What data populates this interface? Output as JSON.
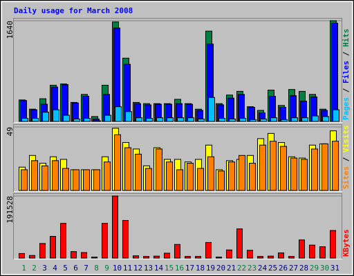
{
  "chart_data": [
    {
      "type": "bar",
      "title": "Daily usage for March 2008",
      "legend_separator": " / ",
      "ylim": [
        0,
        1640
      ],
      "yticks": [
        1640
      ],
      "series": [
        {
          "name": "Pages",
          "color": "#00c0ff",
          "values": [
            50,
            50,
            150,
            190,
            100,
            40,
            50,
            10,
            100,
            240,
            160,
            60,
            50,
            60,
            60,
            60,
            60,
            40,
            390,
            50,
            40,
            50,
            30,
            40,
            60,
            30,
            60,
            60,
            90,
            80,
            190
          ]
        },
        {
          "name": "Files",
          "color": "#0000ff",
          "values": [
            340,
            190,
            280,
            560,
            600,
            300,
            410,
            40,
            440,
            1520,
            930,
            290,
            270,
            280,
            280,
            290,
            280,
            180,
            1260,
            270,
            380,
            440,
            230,
            140,
            410,
            230,
            420,
            330,
            400,
            180,
            1600
          ]
        },
        {
          "name": "Hits",
          "color": "#008040",
          "values": [
            350,
            200,
            370,
            590,
            610,
            310,
            440,
            80,
            590,
            1620,
            1030,
            310,
            290,
            290,
            290,
            360,
            290,
            200,
            1470,
            290,
            430,
            490,
            240,
            180,
            510,
            260,
            520,
            490,
            440,
            200,
            1640
          ]
        }
      ]
    },
    {
      "type": "bar",
      "legend_separator": " / ",
      "ylim": [
        0,
        49
      ],
      "yticks": [
        49
      ],
      "series": [
        {
          "name": "Sites",
          "color": "#ff8000",
          "values": [
            16,
            23,
            19,
            23,
            17,
            16,
            16,
            16,
            22,
            43,
            33,
            28,
            17,
            32,
            22,
            16,
            21,
            17,
            26,
            15,
            22,
            27,
            21,
            35,
            38,
            34,
            25,
            24,
            32,
            36,
            38
          ]
        },
        {
          "name": "Visits",
          "color": "#ffff00",
          "values": [
            18,
            27,
            21,
            26,
            24,
            16,
            16,
            16,
            26,
            48,
            37,
            32,
            19,
            33,
            24,
            24,
            22,
            24,
            35,
            16,
            23,
            24,
            27,
            40,
            44,
            37,
            26,
            25,
            35,
            36,
            46
          ]
        }
      ]
    },
    {
      "type": "bar",
      "ylim": [
        0,
        191528
      ],
      "yticks": [
        191528
      ],
      "categories": [
        "1",
        "2",
        "3",
        "4",
        "5",
        "6",
        "7",
        "8",
        "9",
        "10",
        "11",
        "12",
        "13",
        "14",
        "15",
        "16",
        "17",
        "18",
        "19",
        "20",
        "21",
        "22",
        "23",
        "24",
        "25",
        "26",
        "27",
        "28",
        "29",
        "30",
        "31"
      ],
      "category_colors": [
        "#008040",
        "#008040",
        "#000080",
        "#000080",
        "#000080",
        "#000080",
        "#000080",
        "#008040",
        "#008040",
        "#000080",
        "#000080",
        "#000080",
        "#000080",
        "#000080",
        "#008040",
        "#008040",
        "#000080",
        "#000080",
        "#000080",
        "#000080",
        "#000080",
        "#008040",
        "#008040",
        "#000080",
        "#000080",
        "#000080",
        "#000080",
        "#000080",
        "#008040",
        "#008040",
        "#000080"
      ],
      "series": [
        {
          "name": "KBytes",
          "color": "#ff0000",
          "values": [
            14000,
            8000,
            45000,
            67000,
            107000,
            20000,
            17000,
            3000,
            107000,
            191528,
            116000,
            7000,
            5000,
            6000,
            15000,
            42000,
            5000,
            5000,
            48000,
            3000,
            25000,
            90000,
            24000,
            5000,
            6000,
            16000,
            5000,
            56000,
            40000,
            35000,
            85000
          ]
        }
      ]
    }
  ]
}
